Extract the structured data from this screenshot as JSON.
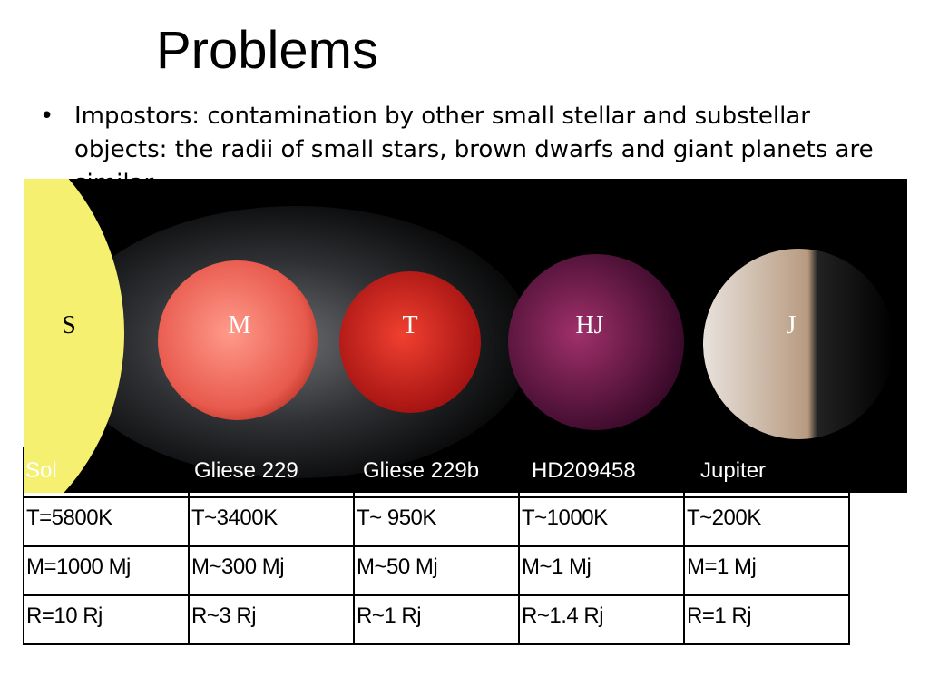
{
  "title": "Problems",
  "bullets": [
    "Impostors: contamination by other small stellar and substellar objects: the radii of small stars, brown dwarfs and giant planets are similar"
  ],
  "image": {
    "labels": [
      "S",
      "M",
      "T",
      "HJ",
      "J"
    ]
  },
  "table": {
    "rows": [
      [
        "Sol",
        "Gliese 229",
        "Gliese 229b",
        "HD209458",
        "Jupiter"
      ],
      [
        "T=5800K",
        "T~3400K",
        "T~ 950K",
        "T~1000K",
        "T~200K"
      ],
      [
        "M=1000 Mj",
        "M~300 Mj",
        "M~50 Mj",
        "M~1 Mj",
        "M=1 Mj"
      ],
      [
        "R=10 Rj",
        "R~3 Rj",
        "R~1 Rj",
        "R~1.4 Rj",
        "R=1 Rj"
      ]
    ]
  }
}
